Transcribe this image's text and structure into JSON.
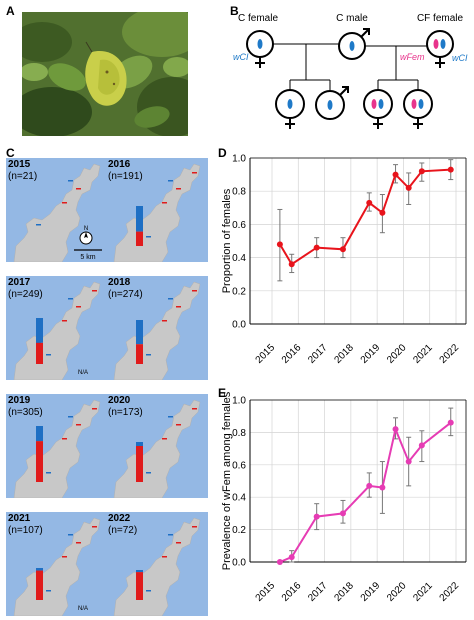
{
  "panels": {
    "a": "A",
    "b": "B",
    "c": "C",
    "d": "D",
    "e": "E"
  },
  "cross": {
    "female_label": "C female",
    "male_label": "C male",
    "cf_female_label": "CF female",
    "wcl_label": "wCI",
    "wcl_label_right": "wCI",
    "wfem_label": "wFem",
    "colors": {
      "wcl": "#1f7ac8",
      "wfem": "#e8348c"
    }
  },
  "maps": [
    {
      "year": "2015",
      "n": "(n=21)",
      "female_frac": null
    },
    {
      "year": "2016",
      "n": "(n=191)",
      "female_frac": 0.36
    },
    {
      "year": "2017",
      "n": "(n=249)",
      "female_frac": 0.46
    },
    {
      "year": "2018",
      "n": "(n=274)",
      "female_frac": 0.45
    },
    {
      "year": "2019",
      "n": "(n=305)",
      "female_frac": 0.73
    },
    {
      "year": "2020",
      "n": "(n=173)",
      "female_frac": 0.9
    },
    {
      "year": "2021",
      "n": "(n=107)",
      "female_frac": 0.92
    },
    {
      "year": "2022",
      "n": "(n=72)",
      "female_frac": 0.93
    }
  ],
  "map_extras": {
    "scale": "5 km",
    "na": "N/A",
    "north": "N"
  },
  "chart_data": [
    {
      "type": "line",
      "ylabel": "Proportion of females",
      "ylim": [
        0.0,
        1.0
      ],
      "yticks": [
        "0.0",
        "0.2",
        "0.4",
        "0.6",
        "0.8",
        "1.0"
      ],
      "x": [
        "2015",
        "2016",
        "2017",
        "2018",
        "2019",
        "2020",
        "2021",
        "2022"
      ],
      "points": [
        {
          "x": 2015.3,
          "y": 0.48,
          "lo": 0.26,
          "hi": 0.69
        },
        {
          "x": 2015.75,
          "y": 0.36,
          "lo": 0.31,
          "hi": 0.42
        },
        {
          "x": 2016.7,
          "y": 0.46,
          "lo": 0.4,
          "hi": 0.52
        },
        {
          "x": 2017.7,
          "y": 0.45,
          "lo": 0.4,
          "hi": 0.52
        },
        {
          "x": 2018.7,
          "y": 0.73,
          "lo": 0.68,
          "hi": 0.79
        },
        {
          "x": 2019.2,
          "y": 0.67,
          "lo": 0.55,
          "hi": 0.78
        },
        {
          "x": 2019.7,
          "y": 0.9,
          "lo": 0.85,
          "hi": 0.96
        },
        {
          "x": 2020.2,
          "y": 0.82,
          "lo": 0.72,
          "hi": 0.91
        },
        {
          "x": 2020.7,
          "y": 0.92,
          "lo": 0.86,
          "hi": 0.97
        },
        {
          "x": 2021.8,
          "y": 0.93,
          "lo": 0.87,
          "hi": 0.99
        }
      ],
      "grid": true,
      "color": "#e8141c"
    },
    {
      "type": "line",
      "ylabel": "Prevalence of wFem among females",
      "ylim": [
        0.0,
        1.0
      ],
      "yticks": [
        "0.0",
        "0.2",
        "0.4",
        "0.6",
        "0.8",
        "1.0"
      ],
      "x": [
        "2015",
        "2016",
        "2017",
        "2018",
        "2019",
        "2020",
        "2021",
        "2022"
      ],
      "points": [
        {
          "x": 2015.3,
          "y": 0.0,
          "lo": 0.0,
          "hi": 0.0
        },
        {
          "x": 2015.75,
          "y": 0.03,
          "lo": 0.0,
          "hi": 0.07
        },
        {
          "x": 2016.7,
          "y": 0.28,
          "lo": 0.2,
          "hi": 0.36
        },
        {
          "x": 2017.7,
          "y": 0.3,
          "lo": 0.24,
          "hi": 0.38
        },
        {
          "x": 2018.7,
          "y": 0.47,
          "lo": 0.4,
          "hi": 0.55
        },
        {
          "x": 2019.2,
          "y": 0.46,
          "lo": 0.3,
          "hi": 0.62
        },
        {
          "x": 2019.7,
          "y": 0.82,
          "lo": 0.76,
          "hi": 0.89
        },
        {
          "x": 2020.2,
          "y": 0.62,
          "lo": 0.47,
          "hi": 0.77
        },
        {
          "x": 2020.7,
          "y": 0.72,
          "lo": 0.62,
          "hi": 0.81
        },
        {
          "x": 2021.8,
          "y": 0.86,
          "lo": 0.78,
          "hi": 0.95
        }
      ],
      "grid": true,
      "color": "#e63cb4"
    }
  ]
}
